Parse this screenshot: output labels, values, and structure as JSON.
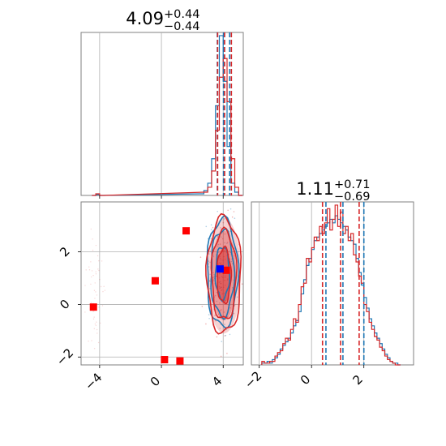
{
  "chart_data": [
    {
      "type": "histogram",
      "panel": "marginal-x",
      "title": {
        "value": "4.09",
        "plus": "+0.44",
        "minus": "−0.44"
      },
      "xlim": [
        -5.2,
        5.3
      ],
      "x_tick_labels": [],
      "series": [
        {
          "name": "",
          "color": "#1f77b4",
          "step": 0.25,
          "bin_starts": [
            -4.5,
            -4.25,
            -4.0,
            2.5,
            2.75,
            3.0,
            3.25,
            3.5,
            3.75,
            4.0,
            4.25,
            4.5,
            4.75,
            5.0
          ],
          "counts": [
            0,
            1,
            0,
            2,
            6,
            15,
            45,
            110,
            196,
            140,
            60,
            15,
            4,
            0
          ]
        },
        {
          "name": "",
          "color": "#d62728",
          "step": 0.25,
          "bin_starts": [
            -4.5,
            -4.25,
            -4.0,
            2.75,
            3.0,
            3.25,
            3.5,
            3.75,
            4.0,
            4.25,
            4.5,
            4.75,
            5.0
          ],
          "counts": [
            0,
            2,
            0,
            4,
            10,
            30,
            80,
            145,
            168,
            115,
            45,
            10,
            0
          ]
        }
      ],
      "quantile_lines": [
        {
          "color": "#1f77b4",
          "x": [
            3.62,
            4.02,
            4.42
          ]
        },
        {
          "color": "#d62728",
          "x": [
            3.64,
            4.09,
            4.53
          ]
        }
      ]
    },
    {
      "type": "histogram",
      "panel": "marginal-y",
      "title": {
        "value": "1.11",
        "plus": "+0.71",
        "minus": "−0.69"
      },
      "xlim": [
        -2.3,
        3.9
      ],
      "x_ticks": [
        -2,
        0,
        2
      ],
      "x_tick_labels": [
        "−2",
        "0",
        "2"
      ],
      "series": [
        {
          "name": "",
          "color": "#1f77b4",
          "step": 0.1,
          "bin_start": -1.9,
          "counts": [
            1,
            1,
            2,
            1,
            3,
            4,
            6,
            9,
            11,
            13,
            15,
            18,
            22,
            25,
            30,
            40,
            48,
            56,
            60,
            65,
            70,
            72,
            74,
            76,
            78,
            80,
            82,
            80,
            84,
            82,
            80,
            78,
            76,
            72,
            70,
            68,
            60,
            52,
            45,
            38,
            32,
            26,
            22,
            18,
            15,
            12,
            9,
            6,
            4,
            2,
            1,
            1,
            0
          ]
        },
        {
          "name": "",
          "color": "#d62728",
          "step": 0.1,
          "bin_start": -1.9,
          "counts": [
            2,
            1,
            1,
            2,
            2,
            5,
            7,
            8,
            12,
            15,
            14,
            20,
            26,
            24,
            34,
            44,
            46,
            60,
            58,
            66,
            72,
            70,
            78,
            74,
            80,
            88,
            76,
            82,
            90,
            78,
            86,
            74,
            78,
            70,
            74,
            62,
            58,
            50,
            46,
            34,
            30,
            24,
            20,
            16,
            14,
            10,
            8,
            5,
            3,
            2,
            1,
            0,
            0
          ]
        }
      ],
      "quantile_lines": [
        {
          "color": "#1f77b4",
          "x": [
            0.55,
            1.2,
            2.0
          ]
        },
        {
          "color": "#d62728",
          "x": [
            0.42,
            1.11,
            1.82
          ]
        }
      ]
    },
    {
      "type": "scatter",
      "panel": "joint",
      "xlim": [
        -5.2,
        5.3
      ],
      "ylim": [
        -2.3,
        3.9
      ],
      "x_ticks": [
        -4,
        0,
        4
      ],
      "x_tick_labels": [
        "−4",
        "0",
        "4"
      ],
      "y_ticks": [
        -2,
        0,
        2
      ],
      "y_tick_labels": [
        "−2",
        "0",
        "2"
      ],
      "red_markers": [
        {
          "x": -4.4,
          "y": -0.1
        },
        {
          "x": -0.4,
          "y": 0.9
        },
        {
          "x": 1.6,
          "y": 2.8
        },
        {
          "x": 0.2,
          "y": -2.1
        },
        {
          "x": 1.2,
          "y": -2.15
        },
        {
          "x": 4.2,
          "y": 1.3
        }
      ],
      "blue_markers": [
        {
          "x": 3.8,
          "y": 1.35
        }
      ],
      "contours": [
        {
          "color": "#1f77b4",
          "cx": 3.95,
          "cy": 1.2,
          "rx": [
            0.45,
            0.75,
            1.0
          ],
          "ry": [
            1.0,
            1.65,
            2.05
          ]
        },
        {
          "color": "#d62728",
          "cx": 4.05,
          "cy": 1.1,
          "rx": [
            0.45,
            0.8,
            1.1
          ],
          "ry": [
            1.05,
            1.7,
            2.2
          ]
        }
      ]
    }
  ]
}
